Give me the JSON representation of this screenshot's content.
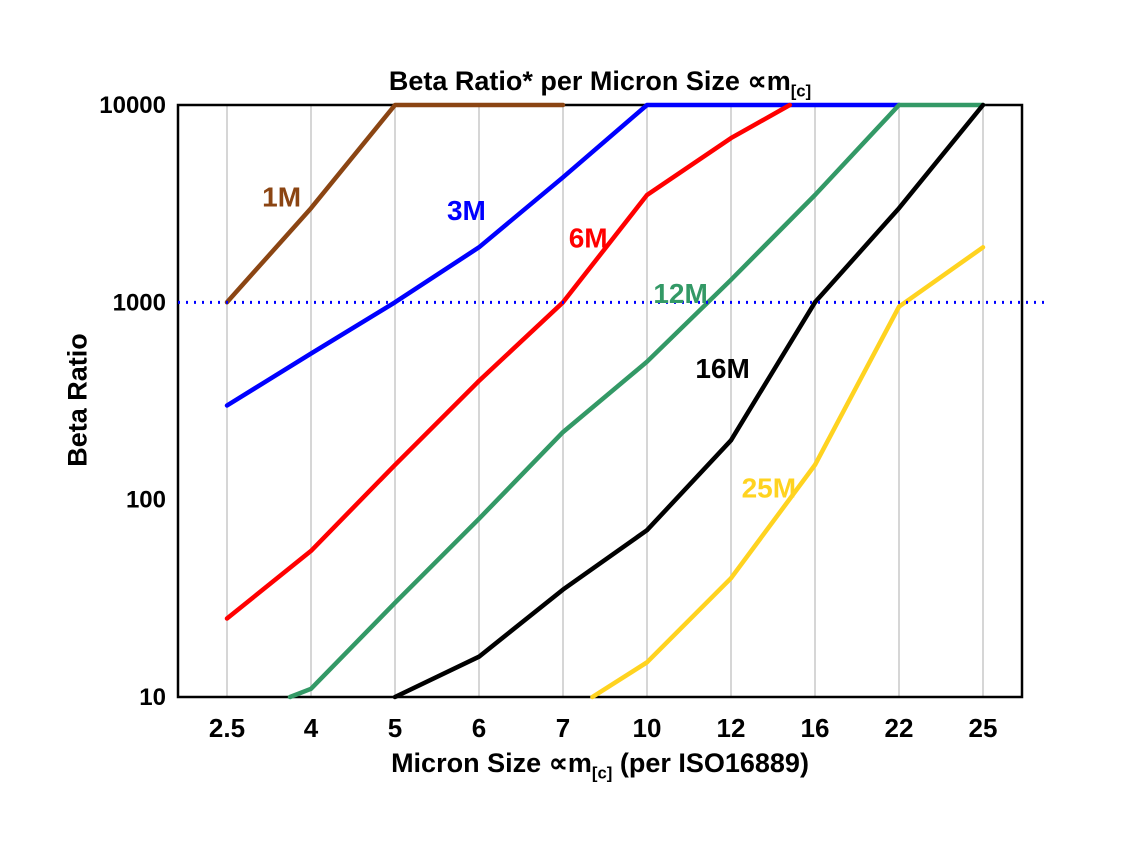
{
  "title": {
    "text": "Beta Ratio* per Micron Size ∝m",
    "sub": "[c]"
  },
  "x_axis": {
    "label_pre": "Micron Size ∝m",
    "label_sub": "[c]",
    "label_post": " (per ISO16889)"
  },
  "y_axis": {
    "label": "Beta Ratio"
  },
  "chart_data": {
    "type": "line",
    "title": "Beta Ratio* per Micron Size ∝m[c]",
    "xlabel": "Micron Size ∝m[c] (per ISO16889)",
    "ylabel": "Beta Ratio",
    "y_scale": "log",
    "ylim": [
      10,
      10000
    ],
    "y_ticks": [
      10000,
      1000,
      100,
      10
    ],
    "categories": [
      "2.5",
      "4",
      "5",
      "6",
      "7",
      "10",
      "12",
      "16",
      "22",
      "25"
    ],
    "grid": "vertical-only",
    "grid_color": "#c8c8c8",
    "legend_position": "inline-labels",
    "reference_line": {
      "value": 1000,
      "color": "#0000ff",
      "style": "dotted"
    },
    "series": [
      {
        "name": "1M",
        "color": "#8B4513",
        "points": [
          [
            0,
            1000
          ],
          [
            1,
            3000
          ],
          [
            2,
            10000
          ],
          [
            4,
            10000
          ]
        ],
        "label_pos": [
          0.65,
          3400
        ]
      },
      {
        "name": "3M",
        "color": "#0000FF",
        "points": [
          [
            0,
            300
          ],
          [
            1,
            550
          ],
          [
            2,
            1000
          ],
          [
            3,
            1900
          ],
          [
            4,
            4300
          ],
          [
            5,
            10000
          ],
          [
            8,
            10000
          ]
        ],
        "label_pos": [
          2.85,
          2900
        ]
      },
      {
        "name": "6M",
        "color": "#FF0000",
        "points": [
          [
            0,
            25
          ],
          [
            1,
            55
          ],
          [
            2,
            150
          ],
          [
            3,
            400
          ],
          [
            4,
            1000
          ],
          [
            5,
            3500
          ],
          [
            6,
            6800
          ],
          [
            6.7,
            10000
          ]
        ],
        "label_pos": [
          4.3,
          2100
        ]
      },
      {
        "name": "12M",
        "color": "#339966",
        "points": [
          [
            0.75,
            10
          ],
          [
            1,
            11
          ],
          [
            2,
            30
          ],
          [
            3,
            80
          ],
          [
            4,
            220
          ],
          [
            5,
            500
          ],
          [
            6,
            1300
          ],
          [
            7,
            3500
          ],
          [
            8,
            10000
          ],
          [
            9,
            10000
          ]
        ],
        "label_pos": [
          5.4,
          1100
        ]
      },
      {
        "name": "16M",
        "color": "#000000",
        "points": [
          [
            2,
            10
          ],
          [
            3,
            16
          ],
          [
            4,
            35
          ],
          [
            5,
            70
          ],
          [
            6,
            200
          ],
          [
            7,
            1000
          ],
          [
            8,
            3000
          ],
          [
            9,
            10000
          ]
        ],
        "label_pos": [
          5.9,
          460
        ]
      },
      {
        "name": "25M",
        "color": "#FFD320",
        "points": [
          [
            4.35,
            10
          ],
          [
            5,
            15
          ],
          [
            6,
            40
          ],
          [
            7,
            150
          ],
          [
            8,
            950
          ],
          [
            9,
            1900
          ]
        ],
        "label_pos": [
          6.45,
          114
        ]
      }
    ]
  }
}
